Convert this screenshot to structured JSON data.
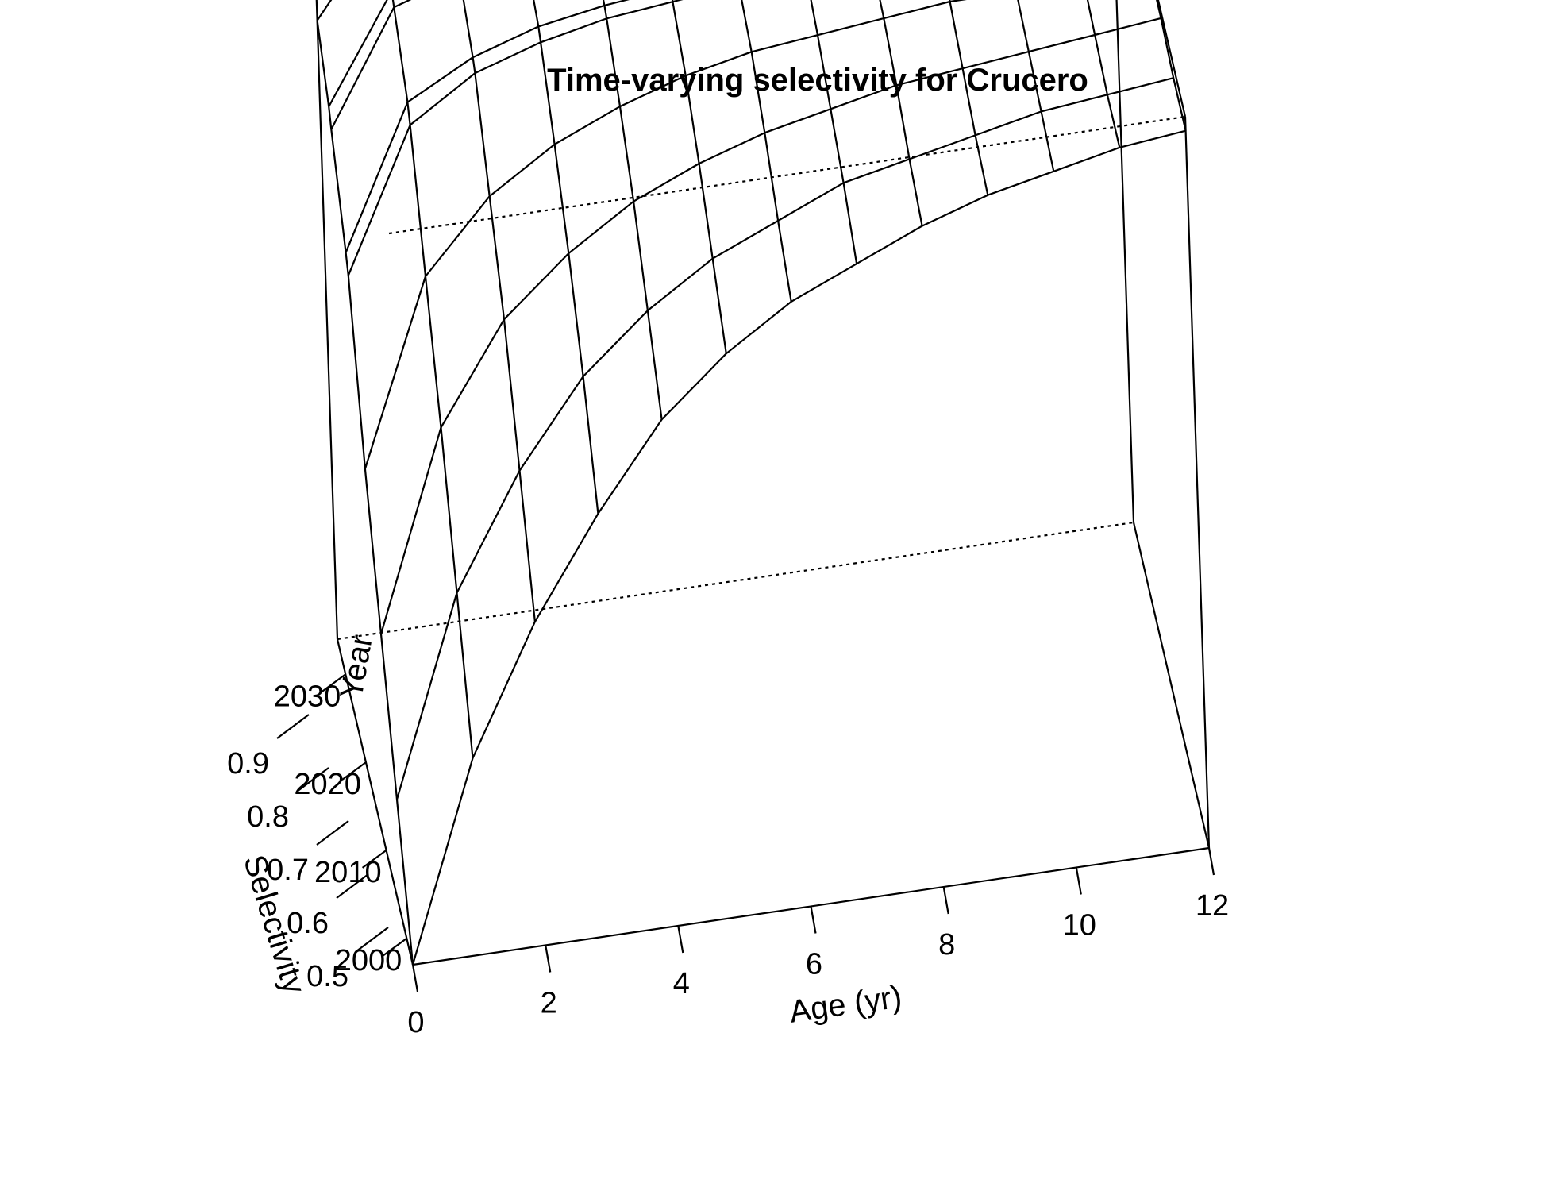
{
  "chart_data": {
    "type": "surface",
    "title": "Time-varying selectivity for Crucero",
    "xlabel": "Age (yr)",
    "ylabel": "Year",
    "zlabel": "Selectivity",
    "x_ticks": [
      "0",
      "2",
      "4",
      "6",
      "8",
      "10",
      "12"
    ],
    "y_ticks": [
      "2000",
      "2010",
      "2020",
      "2030"
    ],
    "z_ticks": [
      "0.5",
      "0.6",
      "0.7",
      "0.8",
      "0.9"
    ],
    "xlim": [
      0,
      12
    ],
    "ylim": [
      1997,
      2034
    ],
    "zlim": [
      0.48,
      1.0
    ],
    "ages": [
      0,
      1,
      2,
      3,
      4,
      5,
      6,
      7,
      8,
      9,
      10,
      11,
      12
    ],
    "years": [
      1997,
      2003,
      2009,
      2015,
      2021,
      2022,
      2028,
      2029,
      2034
    ],
    "selectivity": [
      [
        0.48,
        0.62,
        0.71,
        0.78,
        0.84,
        0.88,
        0.91,
        0.93,
        0.95,
        0.965,
        0.975,
        0.985,
        0.99
      ],
      [
        0.56,
        0.7,
        0.78,
        0.84,
        0.88,
        0.91,
        0.93,
        0.95,
        0.96,
        0.97,
        0.98,
        0.985,
        0.99
      ],
      [
        0.64,
        0.78,
        0.85,
        0.89,
        0.92,
        0.94,
        0.955,
        0.965,
        0.975,
        0.98,
        0.985,
        0.99,
        0.995
      ],
      [
        0.72,
        0.85,
        0.9,
        0.93,
        0.95,
        0.965,
        0.975,
        0.98,
        0.985,
        0.99,
        0.99,
        0.995,
        0.995
      ],
      [
        0.82,
        0.92,
        0.95,
        0.965,
        0.975,
        0.98,
        0.985,
        0.99,
        0.99,
        0.995,
        0.995,
        0.998,
        1.0
      ],
      [
        0.83,
        0.93,
        0.955,
        0.97,
        0.978,
        0.983,
        0.988,
        0.99,
        0.993,
        0.995,
        0.997,
        0.998,
        1.0
      ],
      [
        0.88,
        0.96,
        0.975,
        0.983,
        0.988,
        0.99,
        0.993,
        0.995,
        0.996,
        0.997,
        0.998,
        0.999,
        1.0
      ],
      [
        0.89,
        0.965,
        0.978,
        0.985,
        0.99,
        0.992,
        0.994,
        0.996,
        0.997,
        0.998,
        0.999,
        0.999,
        1.0
      ],
      [
        0.92,
        0.98,
        0.99,
        0.993,
        0.995,
        0.996,
        0.997,
        0.998,
        0.998,
        0.999,
        0.999,
        1.0,
        1.0
      ]
    ],
    "box": true,
    "grid": false,
    "legend": "none",
    "line_color": "#000000"
  }
}
